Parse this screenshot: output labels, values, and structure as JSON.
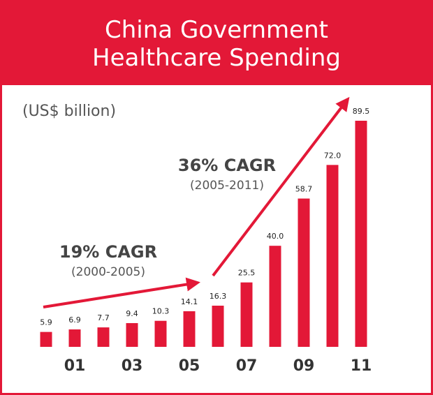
{
  "chart_data": {
    "type": "bar",
    "title": "China Government\nHealthcare Spending",
    "subtitle": "(US$ billion)",
    "categories": [
      null,
      "01",
      null,
      "03",
      null,
      "05",
      null,
      "07",
      null,
      "09",
      null,
      "11"
    ],
    "values": [
      5.9,
      6.9,
      7.7,
      9.4,
      10.3,
      14.1,
      16.3,
      25.5,
      40.0,
      58.7,
      72.0,
      89.5
    ],
    "value_labels": [
      "5.9",
      "6.9",
      "7.7",
      "9.4",
      "10.3",
      "14.1",
      "16.3",
      "25.5",
      "40.0",
      "58.7",
      "72.0",
      "89.5"
    ],
    "color": "#e31837",
    "annotations": [
      {
        "label": "19% CAGR",
        "period": "(2000-2005)"
      },
      {
        "label": "36% CAGR",
        "period": "(2005-2011)"
      }
    ]
  }
}
